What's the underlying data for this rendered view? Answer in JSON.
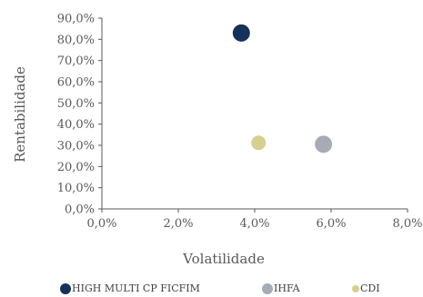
{
  "chart_data": {
    "type": "scatter",
    "xlabel": "Volatilidade",
    "ylabel": "Rentabilidade",
    "xlim": [
      0,
      8
    ],
    "ylim": [
      0,
      90
    ],
    "x_ticks": [
      0,
      2,
      4,
      6,
      8
    ],
    "x_tick_labels": [
      "0,0%",
      "2,0%",
      "4,0%",
      "6,0%",
      "8,0%"
    ],
    "y_ticks": [
      0,
      10,
      20,
      30,
      40,
      50,
      60,
      70,
      80,
      90
    ],
    "y_tick_labels": [
      "0,0%",
      "10,0%",
      "20,0%",
      "30,0%",
      "40,0%",
      "50,0%",
      "60,0%",
      "70,0%",
      "80,0%",
      "90,0%"
    ],
    "grid": false,
    "legend_position": "bottom",
    "series": [
      {
        "name": "HIGH MULTI CP FICFIM",
        "color": "#17325a",
        "size": "large",
        "points": [
          {
            "x": 3.65,
            "y": 83.0
          }
        ]
      },
      {
        "name": "IHFA",
        "color": "#a6acb6",
        "size": "large",
        "points": [
          {
            "x": 5.8,
            "y": 30.5
          }
        ]
      },
      {
        "name": "CDI",
        "color": "#d6cf90",
        "size": "medium",
        "points": [
          {
            "x": 4.1,
            "y": 31.2
          }
        ]
      }
    ]
  }
}
